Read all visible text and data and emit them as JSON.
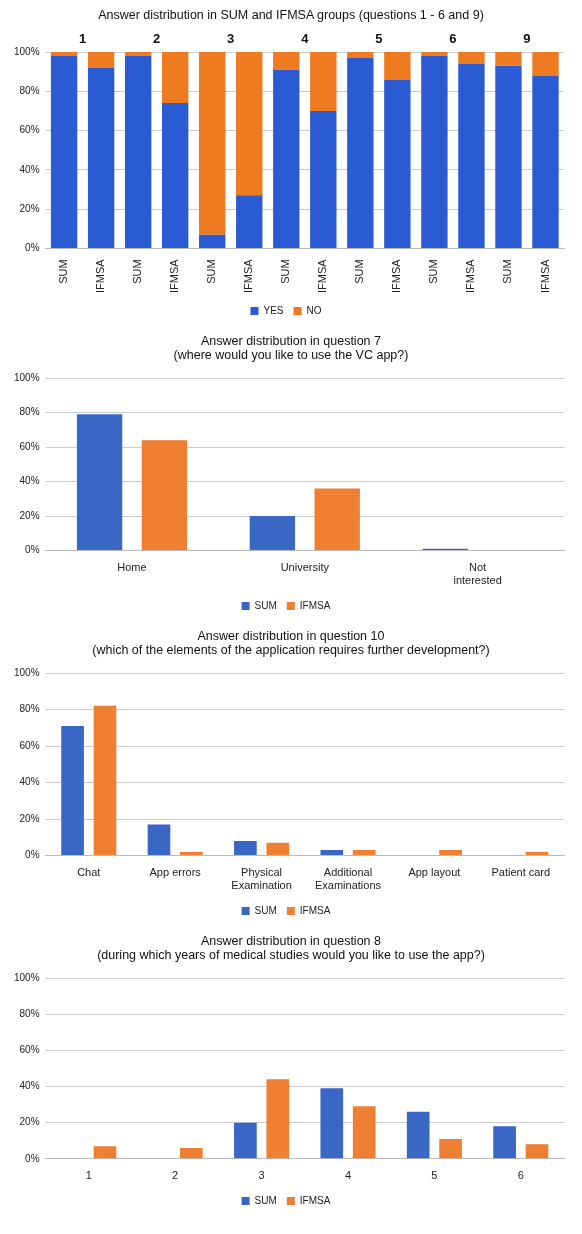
{
  "chart_data": [
    {
      "type": "bar",
      "title": "Answer distribution in SUM and IFMSA groups (questions 1 - 6 and 9)",
      "categories": [
        "SUM",
        "IFMSA",
        "SUM",
        "IFMSA",
        "SUM",
        "IFMSA",
        "SUM",
        "IFMSA",
        "SUM",
        "IFMSA",
        "SUM",
        "IFMSA",
        "SUM",
        "IFMSA"
      ],
      "annotations": [
        "1",
        "2",
        "3",
        "4",
        "5",
        "6",
        "9"
      ],
      "stacked": true,
      "series": [
        {
          "name": "YES",
          "color": "#2a5bd2",
          "values": [
            98,
            92,
            98,
            74,
            7,
            27,
            91,
            70,
            97,
            86,
            98,
            94,
            93,
            88
          ]
        },
        {
          "name": "NO",
          "color": "#ee7a22",
          "values": [
            2,
            8,
            2,
            26,
            93,
            73,
            9,
            30,
            3,
            14,
            2,
            6,
            7,
            12
          ]
        }
      ],
      "ylim": [
        0,
        100
      ],
      "yticks": [
        {
          "value": 0,
          "label": "0%"
        },
        {
          "value": 20,
          "label": "20%"
        },
        {
          "value": 40,
          "label": "40%"
        },
        {
          "value": 60,
          "label": "60%"
        },
        {
          "value": 80,
          "label": "80%"
        },
        {
          "value": 100,
          "label": "100%"
        }
      ],
      "grid": "y",
      "legend": "bottom"
    },
    {
      "type": "bar",
      "title": "Answer distribution in question 7\n(where would you like to use the VC app?)",
      "categories": [
        "Home",
        "University",
        "Not interested"
      ],
      "series": [
        {
          "name": "SUM",
          "color": "#3a66c4",
          "values": [
            79,
            20,
            1
          ]
        },
        {
          "name": "IFMSA",
          "color": "#ee7f33",
          "values": [
            64,
            36,
            0
          ]
        }
      ],
      "ylim": [
        0,
        100
      ],
      "yticks": [
        {
          "value": 0,
          "label": "0%"
        },
        {
          "value": 20,
          "label": "20%"
        },
        {
          "value": 40,
          "label": "40%"
        },
        {
          "value": 60,
          "label": "60%"
        },
        {
          "value": 80,
          "label": "80%"
        },
        {
          "value": 100,
          "label": "100%"
        }
      ],
      "grid": "y",
      "legend": "bottom"
    },
    {
      "type": "bar",
      "title": "Answer distribution in question 10\n(which of the elements of the application requires further development?)",
      "categories": [
        "Chat",
        "App errors",
        "Physical Examination",
        "Additional Examinations",
        "App layout",
        "Patient card"
      ],
      "series": [
        {
          "name": "SUM",
          "color": "#3a66c4",
          "values": [
            71,
            17,
            8,
            3,
            0,
            0
          ]
        },
        {
          "name": "IFMSA",
          "color": "#ee7f33",
          "values": [
            82,
            2,
            7,
            3,
            3,
            2
          ]
        }
      ],
      "ylim": [
        0,
        100
      ],
      "yticks": [
        {
          "value": 0,
          "label": "0%"
        },
        {
          "value": 20,
          "label": "20%"
        },
        {
          "value": 40,
          "label": "40%"
        },
        {
          "value": 60,
          "label": "60%"
        },
        {
          "value": 80,
          "label": "80%"
        },
        {
          "value": 100,
          "label": "100%"
        }
      ],
      "grid": "y",
      "legend": "bottom"
    },
    {
      "type": "bar",
      "title": "Answer distribution in question 8\n(during which years of medical studies would you like to use the app?)",
      "categories": [
        "1",
        "2",
        "3",
        "4",
        "5",
        "6"
      ],
      "series": [
        {
          "name": "SUM",
          "color": "#3a66c4",
          "values": [
            0,
            0,
            20,
            39,
            26,
            18
          ]
        },
        {
          "name": "IFMSA",
          "color": "#ee7f33",
          "values": [
            7,
            6,
            44,
            29,
            11,
            8
          ]
        }
      ],
      "ylim": [
        0,
        100
      ],
      "yticks": [
        {
          "value": 0,
          "label": "0%"
        },
        {
          "value": 20,
          "label": "20%"
        },
        {
          "value": 40,
          "label": "40%"
        },
        {
          "value": 60,
          "label": "60%"
        },
        {
          "value": 80,
          "label": "80%"
        },
        {
          "value": 100,
          "label": "100%"
        }
      ],
      "grid": "y",
      "legend": "bottom"
    }
  ]
}
